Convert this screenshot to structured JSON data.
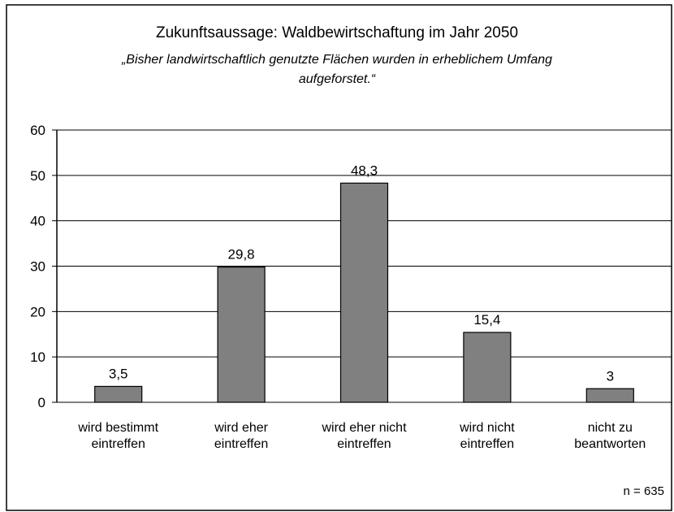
{
  "chart_data": {
    "type": "bar",
    "title": "Zukunftsaussage: Waldbewirtschaftung im Jahr 2050",
    "subtitle": "„Bisher landwirtschaftlich genutzte Flächen wurden in erheblichem Umfang\naufgeforstet.“",
    "categories": [
      "wird bestimmt\neintreffen",
      "wird eher\neintreffen",
      "wird eher nicht\neintreffen",
      "wird nicht\neintreffen",
      "nicht zu\nbeantworten"
    ],
    "values": [
      3.5,
      29.8,
      48.3,
      15.4,
      3
    ],
    "value_labels": [
      "3,5",
      "29,8",
      "48,3",
      "15,4",
      "3"
    ],
    "color": "#808080",
    "ylim": [
      0,
      60
    ],
    "yticks": [
      0,
      10,
      20,
      30,
      40,
      50,
      60
    ],
    "grid": true,
    "annotation": "n = 635"
  }
}
